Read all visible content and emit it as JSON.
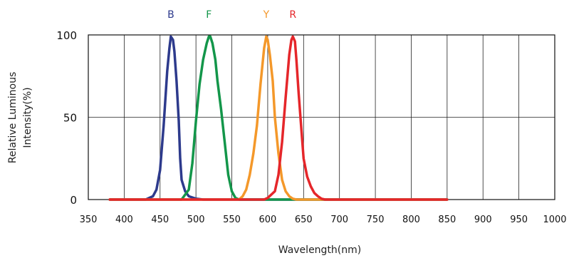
{
  "chart_data": {
    "type": "line",
    "xlabel": "Wavelength(nm)",
    "ylabel_lines": [
      "Relative Luminous",
      "Intensity(%)"
    ],
    "xlim": [
      350,
      1000
    ],
    "ylim": [
      0,
      100
    ],
    "x_ticks": [
      350,
      400,
      450,
      500,
      550,
      600,
      650,
      700,
      750,
      800,
      850,
      900,
      950,
      1000
    ],
    "y_ticks": [
      0,
      50,
      100
    ],
    "grid": true,
    "series": [
      {
        "name": "B",
        "color": "#2d3a8c",
        "x": [
          380,
          430,
          440,
          445,
          450,
          455,
          460,
          463,
          465,
          468,
          470,
          473,
          476,
          478,
          480,
          485,
          490,
          500,
          510,
          850
        ],
        "y": [
          0,
          0,
          2,
          6,
          18,
          45,
          78,
          92,
          99,
          97,
          90,
          72,
          48,
          25,
          12,
          5,
          2,
          0.5,
          0,
          0
        ]
      },
      {
        "name": "F",
        "color": "#13964a",
        "x": [
          380,
          480,
          490,
          495,
          500,
          505,
          510,
          515,
          518,
          520,
          523,
          527,
          530,
          535,
          540,
          545,
          550,
          555,
          560,
          850
        ],
        "y": [
          0,
          0,
          6,
          22,
          48,
          70,
          85,
          95,
          99,
          99,
          95,
          85,
          72,
          55,
          35,
          15,
          5,
          1,
          0,
          0
        ]
      },
      {
        "name": "Y",
        "color": "#f4982a",
        "x": [
          380,
          560,
          565,
          570,
          575,
          580,
          585,
          590,
          595,
          598,
          600,
          603,
          607,
          610,
          615,
          620,
          625,
          630,
          635,
          640,
          850
        ],
        "y": [
          0,
          0,
          2,
          6,
          15,
          28,
          45,
          70,
          92,
          99,
          97,
          88,
          72,
          50,
          28,
          12,
          5,
          2,
          0.5,
          0,
          0
        ]
      },
      {
        "name": "R",
        "color": "#e5262a",
        "x": [
          380,
          595,
          600,
          610,
          615,
          620,
          625,
          630,
          633,
          635,
          638,
          640,
          643,
          647,
          650,
          655,
          660,
          665,
          670,
          675,
          680,
          850
        ],
        "y": [
          0,
          0,
          1,
          5,
          15,
          35,
          62,
          88,
          97,
          99,
          96,
          85,
          65,
          42,
          25,
          14,
          8,
          4,
          2,
          0.5,
          0,
          0
        ]
      }
    ]
  }
}
